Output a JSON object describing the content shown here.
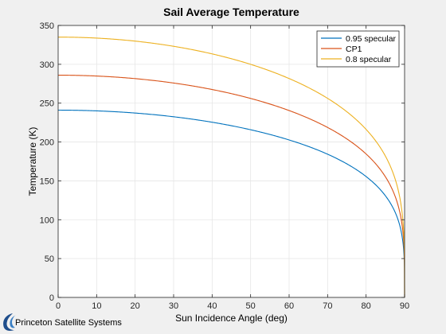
{
  "chart_data": {
    "type": "line",
    "title": "Sail Average Temperature",
    "xlabel": "Sun Incidence Angle (deg)",
    "ylabel": "Temperature (K)",
    "xlim": [
      0,
      90
    ],
    "ylim": [
      0,
      350
    ],
    "xticks": [
      0,
      10,
      20,
      30,
      40,
      50,
      60,
      70,
      80,
      90
    ],
    "yticks": [
      0,
      50,
      100,
      150,
      200,
      250,
      300,
      350
    ],
    "grid": true,
    "legend_position": "top-right",
    "series": [
      {
        "name": "0.95 specular",
        "color": "#0072BD",
        "x": [
          0,
          10,
          20,
          30,
          40,
          50,
          60,
          70,
          80,
          85,
          88,
          89,
          89.5,
          90
        ],
        "y": [
          241,
          239.8,
          236.4,
          230.4,
          221.5,
          209.1,
          191.5,
          166.9,
          130.5,
          103.0,
          77.7,
          63.0,
          52.5,
          0
        ]
      },
      {
        "name": "CP1",
        "color": "#D95319",
        "x": [
          0,
          10,
          20,
          30,
          40,
          50,
          60,
          70,
          80,
          85,
          88,
          89,
          89.5,
          90
        ],
        "y": [
          286,
          284.9,
          280.6,
          273.4,
          262.8,
          248.1,
          227.5,
          198.4,
          155.1,
          122.6,
          92.2,
          74.9,
          62.4,
          0
        ]
      },
      {
        "name": "0.8 specular",
        "color": "#EDB120",
        "x": [
          0,
          10,
          20,
          30,
          40,
          50,
          60,
          70,
          80,
          85,
          88,
          89,
          89.5,
          90
        ],
        "y": [
          335,
          333.7,
          328.6,
          320.2,
          307.8,
          290.6,
          266.5,
          232.3,
          181.6,
          143.3,
          107.5,
          87.2,
          72.6,
          0
        ]
      }
    ]
  },
  "logo": {
    "text": "Princeton Satellite Systems",
    "color": "#1f4e8c"
  }
}
